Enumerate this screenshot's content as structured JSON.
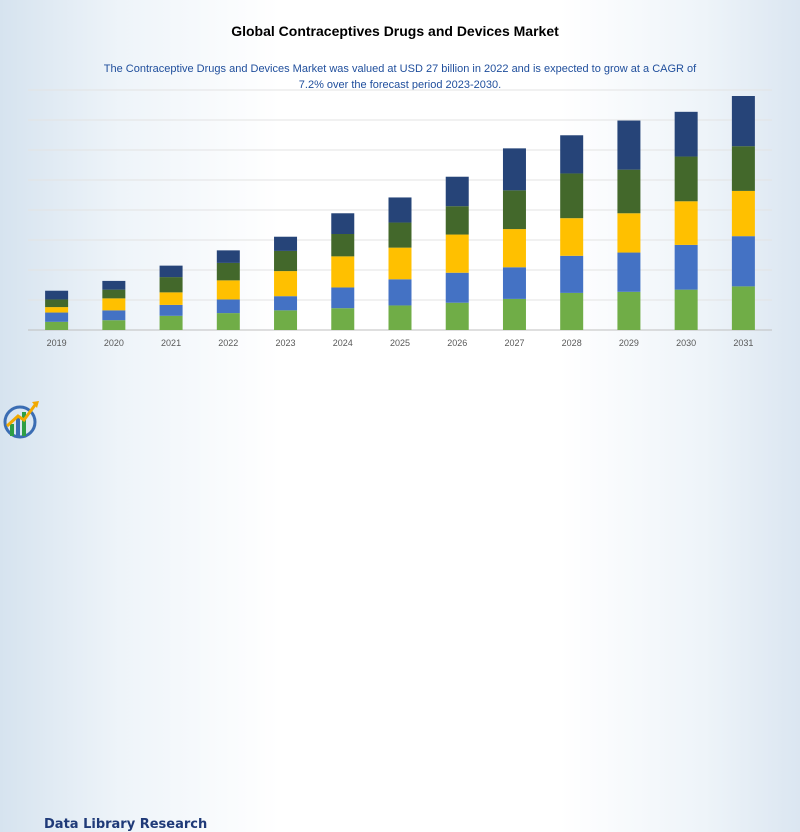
{
  "header": {
    "title": "Global Contraceptives Drugs and Devices Market",
    "subtitle": "The Contraceptive Drugs and Devices Market was valued at USD 27 billion in 2022 and is expected to grow at a CAGR of 7.2% over the forecast period 2023-2030."
  },
  "brand": {
    "name": "Data Library Research",
    "logo_icon": "growth-chart-logo-icon"
  },
  "chart_data": {
    "type": "bar",
    "stacked": true,
    "categories": [
      "2019",
      "2020",
      "2021",
      "2022",
      "2023",
      "2024",
      "2025",
      "2026",
      "2027",
      "2028",
      "2029",
      "2030",
      "2031"
    ],
    "series": [
      {
        "color": "#70ad47",
        "values": [
          1.5,
          1.8,
          2.6,
          3.1,
          3.6,
          4.0,
          4.5,
          5.0,
          5.7,
          6.8,
          7.0,
          7.4,
          8.0
        ]
      },
      {
        "color": "#4472c4",
        "values": [
          1.7,
          1.8,
          2.0,
          2.5,
          2.6,
          3.8,
          4.8,
          5.5,
          5.8,
          6.8,
          7.2,
          8.2,
          9.2
        ]
      },
      {
        "color": "#ffc000",
        "values": [
          1.0,
          2.2,
          2.3,
          3.5,
          4.6,
          5.7,
          5.8,
          7.0,
          7.0,
          6.9,
          7.2,
          8.0,
          8.3
        ]
      },
      {
        "color": "#43682b",
        "values": [
          1.4,
          1.6,
          2.8,
          3.2,
          3.7,
          4.1,
          4.6,
          5.2,
          7.1,
          8.2,
          8.0,
          8.2,
          8.2
        ]
      },
      {
        "color": "#264478",
        "values": [
          1.6,
          1.6,
          2.1,
          2.3,
          2.6,
          3.8,
          4.6,
          5.4,
          7.7,
          7.0,
          9.0,
          8.2,
          9.2
        ]
      }
    ],
    "ylim": [
      0,
      44
    ],
    "grid": true,
    "legend": "none"
  }
}
